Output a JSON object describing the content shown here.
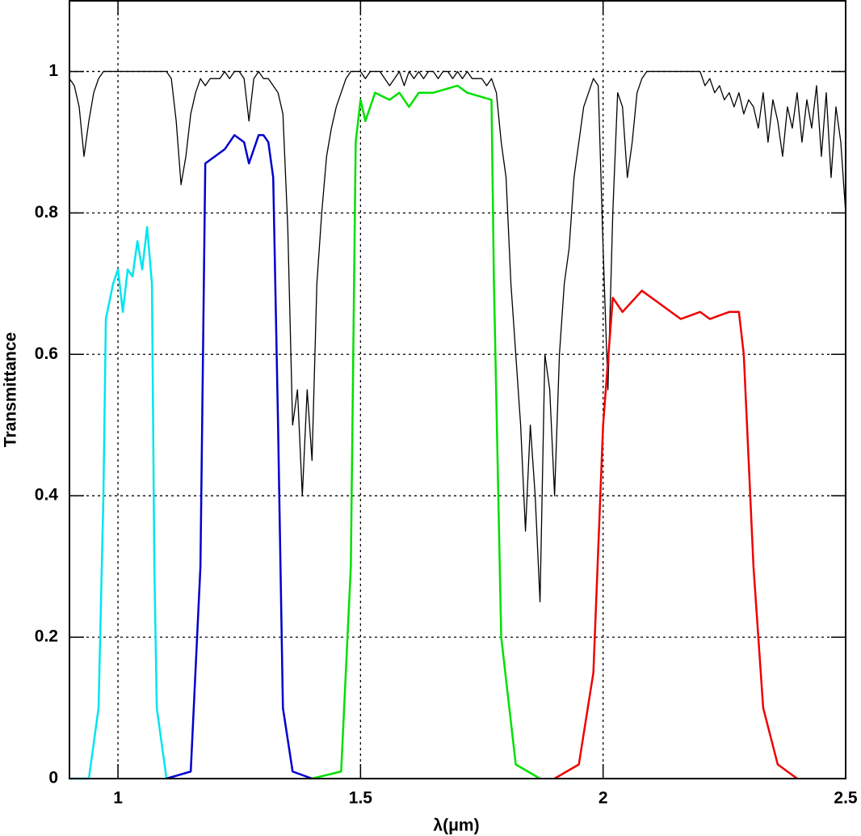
{
  "chart_data": {
    "type": "line",
    "xlabel": "λ(μm)",
    "ylabel": "Transmittance",
    "xlim": [
      0.9,
      2.5
    ],
    "ylim": [
      0,
      1.1
    ],
    "xticks": [
      1,
      1.5,
      2,
      2.5
    ],
    "yticks": [
      0,
      0.2,
      0.4,
      0.6,
      0.8,
      1
    ],
    "grid": true,
    "series": [
      {
        "color": "#000000",
        "x": [
          0.9,
          0.91,
          0.92,
          0.93,
          0.94,
          0.95,
          0.96,
          0.97,
          0.98,
          0.99,
          1.0,
          1.01,
          1.02,
          1.03,
          1.04,
          1.05,
          1.06,
          1.07,
          1.08,
          1.09,
          1.1,
          1.11,
          1.12,
          1.13,
          1.14,
          1.15,
          1.16,
          1.17,
          1.18,
          1.19,
          1.2,
          1.21,
          1.22,
          1.23,
          1.24,
          1.25,
          1.26,
          1.27,
          1.28,
          1.29,
          1.3,
          1.31,
          1.32,
          1.33,
          1.34,
          1.35,
          1.36,
          1.37,
          1.38,
          1.39,
          1.4,
          1.41,
          1.42,
          1.43,
          1.44,
          1.45,
          1.46,
          1.47,
          1.48,
          1.49,
          1.5,
          1.51,
          1.52,
          1.53,
          1.54,
          1.55,
          1.56,
          1.57,
          1.58,
          1.59,
          1.6,
          1.61,
          1.62,
          1.63,
          1.64,
          1.65,
          1.66,
          1.67,
          1.68,
          1.69,
          1.7,
          1.71,
          1.72,
          1.73,
          1.74,
          1.75,
          1.76,
          1.77,
          1.78,
          1.79,
          1.8,
          1.81,
          1.82,
          1.83,
          1.84,
          1.85,
          1.86,
          1.87,
          1.88,
          1.89,
          1.9,
          1.91,
          1.92,
          1.93,
          1.94,
          1.95,
          1.96,
          1.97,
          1.98,
          1.99,
          2.0,
          2.01,
          2.02,
          2.03,
          2.04,
          2.05,
          2.06,
          2.07,
          2.08,
          2.09,
          2.1,
          2.11,
          2.12,
          2.13,
          2.14,
          2.15,
          2.16,
          2.17,
          2.18,
          2.19,
          2.2,
          2.21,
          2.22,
          2.23,
          2.24,
          2.25,
          2.26,
          2.27,
          2.28,
          2.29,
          2.3,
          2.31,
          2.32,
          2.33,
          2.34,
          2.35,
          2.36,
          2.37,
          2.38,
          2.39,
          2.4,
          2.41,
          2.42,
          2.43,
          2.44,
          2.45,
          2.46,
          2.47,
          2.48,
          2.49,
          2.5
        ],
        "values": [
          0.99,
          0.98,
          0.95,
          0.88,
          0.93,
          0.97,
          0.99,
          1,
          1,
          1,
          1,
          1,
          1,
          1,
          1,
          1,
          1,
          1,
          1,
          1,
          1,
          0.99,
          0.93,
          0.84,
          0.88,
          0.94,
          0.97,
          0.99,
          0.98,
          0.99,
          0.99,
          0.99,
          1,
          0.99,
          1,
          1,
          0.99,
          0.93,
          0.99,
          1,
          0.99,
          0.99,
          0.98,
          0.97,
          0.94,
          0.78,
          0.5,
          0.55,
          0.4,
          0.55,
          0.45,
          0.7,
          0.8,
          0.88,
          0.92,
          0.95,
          0.97,
          0.99,
          1,
          1,
          1,
          0.99,
          1,
          1,
          1,
          0.99,
          0.98,
          0.99,
          1,
          0.98,
          1,
          0.99,
          1,
          0.99,
          1,
          1,
          0.99,
          1,
          1,
          0.99,
          1,
          0.99,
          1,
          0.99,
          0.99,
          0.99,
          0.98,
          0.99,
          0.97,
          0.9,
          0.85,
          0.7,
          0.6,
          0.5,
          0.35,
          0.5,
          0.4,
          0.25,
          0.6,
          0.55,
          0.4,
          0.6,
          0.7,
          0.75,
          0.85,
          0.9,
          0.95,
          0.97,
          0.99,
          0.98,
          0.75,
          0.55,
          0.8,
          0.97,
          0.95,
          0.85,
          0.9,
          0.97,
          0.99,
          1,
          1,
          1,
          1,
          1,
          1,
          1,
          1,
          1,
          1,
          1,
          1,
          0.98,
          0.99,
          0.97,
          0.98,
          0.96,
          0.97,
          0.95,
          0.97,
          0.94,
          0.96,
          0.95,
          0.92,
          0.97,
          0.9,
          0.96,
          0.93,
          0.88,
          0.95,
          0.92,
          0.97,
          0.9,
          0.96,
          0.92,
          0.98,
          0.88,
          0.97,
          0.85,
          0.95,
          0.9,
          0.8
        ]
      },
      {
        "color": "#00e5ee",
        "x": [
          0.9,
          0.94,
          0.96,
          0.97,
          0.975,
          0.99,
          1.0,
          1.01,
          1.02,
          1.03,
          1.04,
          1.05,
          1.06,
          1.07,
          1.075,
          1.08,
          1.1
        ],
        "values": [
          0,
          0,
          0.1,
          0.4,
          0.65,
          0.7,
          0.72,
          0.66,
          0.72,
          0.71,
          0.76,
          0.72,
          0.78,
          0.7,
          0.3,
          0.1,
          0
        ]
      },
      {
        "color": "#0000cd",
        "x": [
          1.1,
          1.15,
          1.17,
          1.18,
          1.2,
          1.22,
          1.24,
          1.26,
          1.27,
          1.29,
          1.3,
          1.31,
          1.32,
          1.33,
          1.34,
          1.36,
          1.4
        ],
        "values": [
          0,
          0.01,
          0.3,
          0.87,
          0.88,
          0.89,
          0.91,
          0.9,
          0.87,
          0.91,
          0.91,
          0.9,
          0.85,
          0.5,
          0.1,
          0.01,
          0
        ]
      },
      {
        "color": "#00e000",
        "x": [
          1.4,
          1.46,
          1.48,
          1.49,
          1.5,
          1.51,
          1.53,
          1.56,
          1.58,
          1.6,
          1.62,
          1.65,
          1.7,
          1.72,
          1.77,
          1.775,
          1.79,
          1.82,
          1.87
        ],
        "values": [
          0,
          0.01,
          0.3,
          0.9,
          0.96,
          0.93,
          0.97,
          0.96,
          0.97,
          0.95,
          0.97,
          0.97,
          0.98,
          0.97,
          0.96,
          0.7,
          0.2,
          0.02,
          0
        ]
      },
      {
        "color": "#ee0000",
        "x": [
          1.9,
          1.95,
          1.98,
          2.0,
          2.02,
          2.04,
          2.08,
          2.12,
          2.16,
          2.2,
          2.22,
          2.26,
          2.28,
          2.29,
          2.31,
          2.33,
          2.36,
          2.4
        ],
        "values": [
          0,
          0.02,
          0.15,
          0.5,
          0.68,
          0.66,
          0.69,
          0.67,
          0.65,
          0.66,
          0.65,
          0.66,
          0.66,
          0.6,
          0.3,
          0.1,
          0.02,
          0
        ]
      }
    ]
  }
}
